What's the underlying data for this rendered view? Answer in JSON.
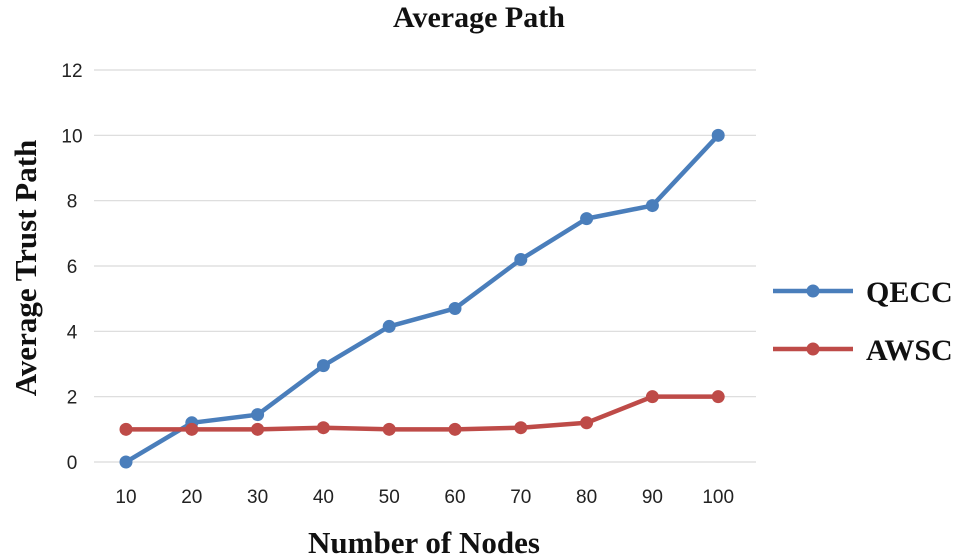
{
  "chart_data": {
    "type": "line",
    "title": "Average Path",
    "xlabel": "Number of Nodes",
    "ylabel": "Average Trust Path",
    "categories": [
      "10",
      "20",
      "30",
      "40",
      "50",
      "60",
      "70",
      "80",
      "90",
      "100"
    ],
    "ylim": [
      0,
      12
    ],
    "yticks": [
      "0",
      "2",
      "4",
      "6",
      "8",
      "10",
      "12"
    ],
    "grid": true,
    "legend_position": "right",
    "series": [
      {
        "name": "QECC",
        "color": "#4a7ebb",
        "values": [
          0,
          1.2,
          1.45,
          2.95,
          4.15,
          4.7,
          6.2,
          7.45,
          7.85,
          10.0
        ]
      },
      {
        "name": "AWSC",
        "color": "#be4b48",
        "values": [
          1.0,
          1.0,
          1.0,
          1.05,
          1.0,
          1.0,
          1.05,
          1.2,
          2.0,
          2.0
        ]
      }
    ]
  }
}
